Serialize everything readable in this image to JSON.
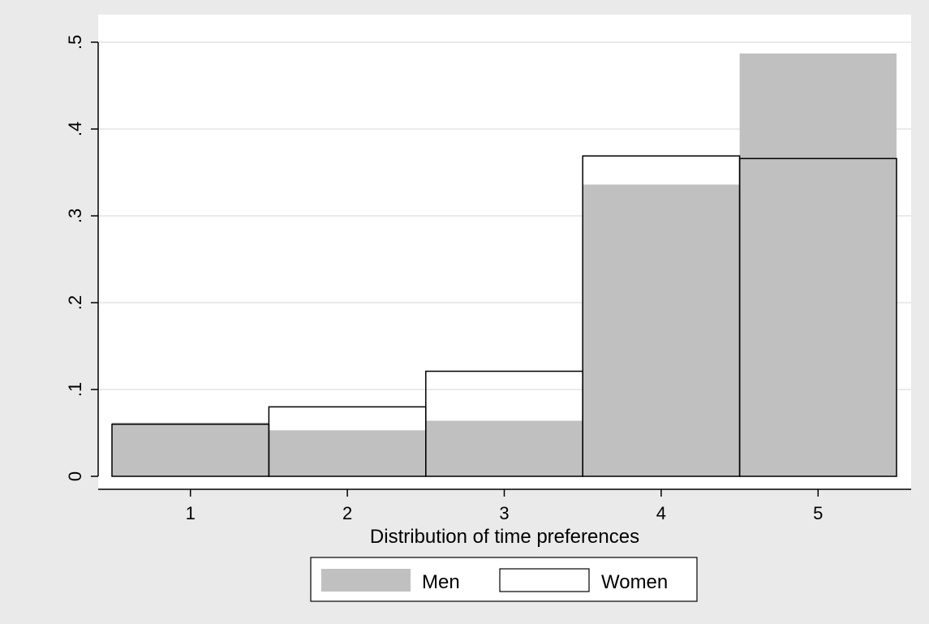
{
  "chart_data": {
    "type": "bar",
    "title": "",
    "xlabel": "Distribution of time preferences",
    "ylabel": "",
    "categories": [
      "1",
      "2",
      "3",
      "4",
      "5"
    ],
    "yticks": [
      "0",
      ".1",
      ".2",
      ".3",
      ".4",
      ".5"
    ],
    "ytick_values": [
      0,
      0.1,
      0.2,
      0.3,
      0.4,
      0.5
    ],
    "ylim": [
      0,
      0.5
    ],
    "grid": true,
    "legend_position": "bottom",
    "series": [
      {
        "name": "Men",
        "values": [
          0.062,
          0.053,
          0.064,
          0.336,
          0.487
        ],
        "color": "#c0c0c0",
        "style": "filled"
      },
      {
        "name": "Women",
        "values": [
          0.06,
          0.08,
          0.121,
          0.369,
          0.366
        ],
        "color": "#ffffff",
        "style": "outline"
      }
    ]
  },
  "colors": {
    "background": "#eaeaea",
    "plot_background": "#ffffff",
    "gridline": "#eaeaea",
    "men_fill": "#c0c0c0",
    "women_outline": "#000000"
  }
}
